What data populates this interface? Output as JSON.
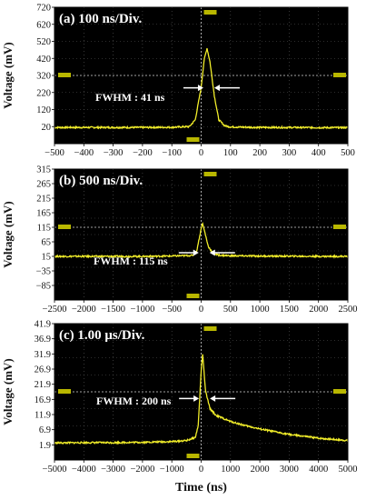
{
  "chart_data": [
    {
      "type": "line",
      "title": "(a) 100 ns/Div.",
      "ylabel": "Voltage (mV)",
      "xlabel": "",
      "xlim": [
        -500,
        500
      ],
      "ylim": [
        -80,
        720
      ],
      "xticks": [
        "−500",
        "−400",
        "−300",
        "−200",
        "−100",
        "0",
        "100",
        "200",
        "300",
        "400",
        "500"
      ],
      "yticks": [
        "20",
        "120",
        "220",
        "320",
        "420",
        "520",
        "620",
        "720"
      ],
      "annotation": "FWHM : 41 ns",
      "baseline": 15,
      "peak": {
        "x": 20,
        "y": 480
      },
      "fwhm_ns": 41,
      "trigger_level": 320,
      "grid": true,
      "series": [
        {
          "x": [
            -500,
            -400,
            -300,
            -200,
            -100,
            -40,
            -20,
            0,
            10,
            20,
            30,
            45,
            60,
            80,
            100,
            200,
            300,
            400,
            500
          ],
          "y": [
            15,
            15,
            15,
            15,
            16,
            20,
            60,
            250,
            410,
            480,
            400,
            200,
            60,
            25,
            18,
            15,
            15,
            14,
            14
          ]
        }
      ]
    },
    {
      "type": "line",
      "title": "(b) 500 ns/Div.",
      "ylabel": "Voltage (mV)",
      "xlabel": "",
      "xlim": [
        -2500,
        2500
      ],
      "ylim": [
        -135,
        315
      ],
      "xticks": [
        "−2500",
        "−2000",
        "−1500",
        "−1000",
        "−500",
        "0",
        "500",
        "1000",
        "1500",
        "2000",
        "2500"
      ],
      "yticks": [
        "−85",
        "−35",
        "15",
        "65",
        "115",
        "165",
        "215",
        "265",
        "315"
      ],
      "annotation": "FWHM : 115 ns",
      "baseline": 15,
      "peak": {
        "x": 20,
        "y": 130
      },
      "fwhm_ns": 115,
      "trigger_level": 115,
      "grid": true,
      "series": [
        {
          "x": [
            -2500,
            -2000,
            -1500,
            -1000,
            -500,
            -150,
            -80,
            0,
            20,
            60,
            120,
            200,
            300,
            500,
            1000,
            2000,
            2500
          ],
          "y": [
            15,
            15,
            15,
            15,
            16,
            18,
            30,
            110,
            130,
            100,
            50,
            25,
            19,
            17,
            16,
            15,
            15
          ]
        }
      ]
    },
    {
      "type": "line",
      "title": "(c) 1.00 μs/Div.",
      "ylabel": "Voltage (mV)",
      "xlabel": "Time (ns)",
      "xlim": [
        -5000,
        5000
      ],
      "ylim": [
        1.9,
        41.9
      ],
      "xticks": [
        "−5000",
        "−4000",
        "−3000",
        "−2000",
        "−1000",
        "0",
        "1000",
        "2000",
        "3000",
        "4000",
        "5000"
      ],
      "yticks": [
        "1.9",
        "6.9",
        "11.9",
        "16.9",
        "21.9",
        "26.9",
        "31.9",
        "36.9",
        "41.9"
      ],
      "annotation": "FWHM : 200 ns",
      "baseline": 6.9,
      "peak": {
        "x": 50,
        "y": 33
      },
      "fwhm_ns": 200,
      "trigger_level": 21.9,
      "grid": true,
      "series": [
        {
          "x": [
            -5000,
            -4000,
            -3000,
            -2000,
            -1000,
            -500,
            -200,
            -100,
            0,
            50,
            150,
            300,
            500,
            1000,
            1500,
            2000,
            3000,
            4000,
            5000
          ],
          "y": [
            6.9,
            7.0,
            7.0,
            7.1,
            7.3,
            7.6,
            8.5,
            12,
            28,
            33,
            22,
            17,
            15,
            13.2,
            12,
            11,
            9.4,
            8.3,
            7.6
          ]
        }
      ]
    }
  ]
}
